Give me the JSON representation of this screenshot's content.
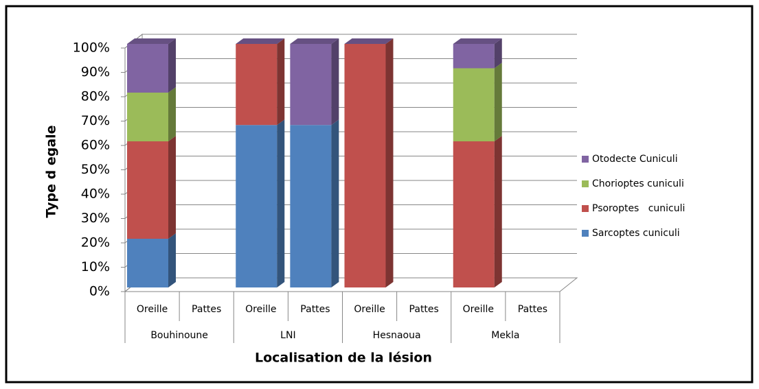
{
  "chart_data": {
    "type": "stacked-bar-3d",
    "x_label": "Localisation de la lésion",
    "y_label": "Type d egale",
    "categories": [
      "Oreille",
      "Pattes",
      "Oreille",
      "Pattes",
      "Oreille",
      "Pattes",
      "Oreille",
      "Pattes"
    ],
    "groups": [
      "Bouhinoune",
      "LNI",
      "Hesnaoua",
      "Mekla"
    ],
    "series": [
      {
        "name": "Sarcoptes cuniculi",
        "color": "#4f81bd",
        "values": [
          20,
          0,
          66.7,
          66.7,
          0,
          0,
          0,
          0
        ]
      },
      {
        "name": "Psoroptes   cuniculi",
        "color": "#c0504d",
        "values": [
          40,
          0,
          33.3,
          0,
          100,
          0,
          60,
          0
        ]
      },
      {
        "name": "Chorioptes cuniculi",
        "color": "#9bbb59",
        "values": [
          20,
          0,
          0,
          0,
          0,
          0,
          30,
          0
        ]
      },
      {
        "name": "Otodecte Cuniculi",
        "color": "#8064a2",
        "values": [
          20,
          0,
          0,
          33.3,
          0,
          0,
          10,
          0
        ]
      }
    ],
    "ylim": [
      0,
      100
    ],
    "yticks": [
      {
        "value": 0,
        "label": "0%"
      },
      {
        "value": 10,
        "label": "10%"
      },
      {
        "value": 20,
        "label": "20%"
      },
      {
        "value": 30,
        "label": "30%"
      },
      {
        "value": 40,
        "label": "40%"
      },
      {
        "value": 50,
        "label": "50%"
      },
      {
        "value": 60,
        "label": "60%"
      },
      {
        "value": 70,
        "label": "70%"
      },
      {
        "value": 80,
        "label": "80%"
      },
      {
        "value": 90,
        "label": "90%"
      },
      {
        "value": 100,
        "label": "100%"
      }
    ],
    "grid": true,
    "legend": "right"
  }
}
